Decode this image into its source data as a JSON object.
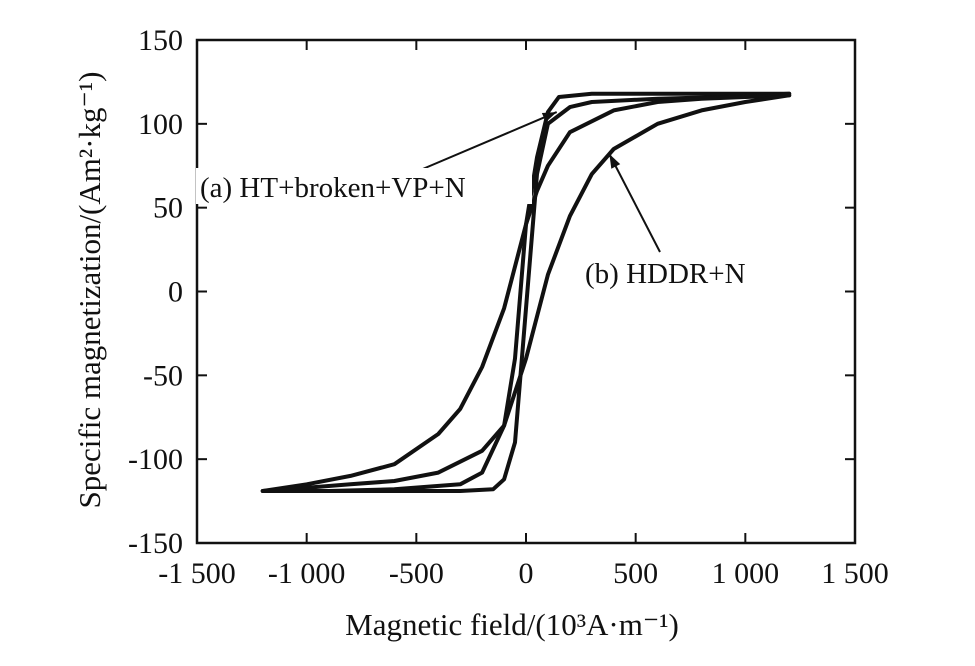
{
  "chart_data": {
    "type": "line",
    "title": "",
    "xlabel": "Magnetic field/(10³A·m⁻¹)",
    "ylabel": "Specific magnetization/(Am²·kg⁻¹)",
    "xlim": [
      -1500,
      1500
    ],
    "ylim": [
      -150,
      150
    ],
    "x_ticks": [
      -1500,
      -1000,
      -500,
      0,
      500,
      1000,
      1500
    ],
    "x_tick_labels": [
      "-1 500",
      "-1 000",
      "-500",
      "0",
      "500",
      "1 000",
      "1 500"
    ],
    "y_ticks": [
      -150,
      -100,
      -50,
      0,
      50,
      100,
      150
    ],
    "y_tick_labels": [
      "-150",
      "-100",
      "-50",
      "0",
      "50",
      "100",
      "150"
    ],
    "grid": false,
    "line_color": "#111111",
    "series": [
      {
        "name": "(a) HT+broken+VP+N",
        "upper": {
          "x": [
            -1200,
            -900,
            -600,
            -300,
            -200,
            -100,
            -50,
            0,
            50,
            100,
            150,
            300,
            600,
            900,
            1200
          ],
          "y": [
            -119,
            -119,
            -118,
            -115,
            -108,
            -80,
            -40,
            40,
            80,
            107,
            116,
            118,
            118,
            118,
            118
          ]
        },
        "lower": {
          "x": [
            -1200,
            -900,
            -600,
            -300,
            -150,
            -100,
            -50,
            0,
            50,
            100,
            200,
            300,
            600,
            900,
            1200
          ],
          "y": [
            -119,
            -119,
            -119,
            -119,
            -118,
            -112,
            -90,
            -10,
            70,
            100,
            110,
            113,
            115,
            116,
            118
          ]
        }
      },
      {
        "name": "(b) HDDR+N",
        "upper": {
          "x": [
            -1200,
            -1000,
            -800,
            -600,
            -400,
            -300,
            -200,
            -100,
            0,
            50,
            100,
            200,
            400,
            600,
            800,
            1000,
            1200
          ],
          "y": [
            -119,
            -115,
            -110,
            -103,
            -85,
            -70,
            -45,
            -10,
            40,
            60,
            75,
            95,
            108,
            113,
            115,
            116,
            117
          ]
        },
        "lower": {
          "x": [
            -1200,
            -1000,
            -800,
            -600,
            -400,
            -200,
            -100,
            0,
            100,
            200,
            300,
            400,
            600,
            800,
            1000,
            1200
          ],
          "y": [
            -119,
            -117,
            -115,
            -113,
            -108,
            -95,
            -80,
            -40,
            10,
            45,
            70,
            85,
            100,
            108,
            113,
            117
          ]
        }
      }
    ],
    "annotations": [
      {
        "text": "(a) HT+broken+VP+N",
        "arrow_to": [
          140,
          107
        ]
      },
      {
        "text": "(b) HDDR+N",
        "arrow_to": [
          380,
          82
        ]
      }
    ]
  }
}
